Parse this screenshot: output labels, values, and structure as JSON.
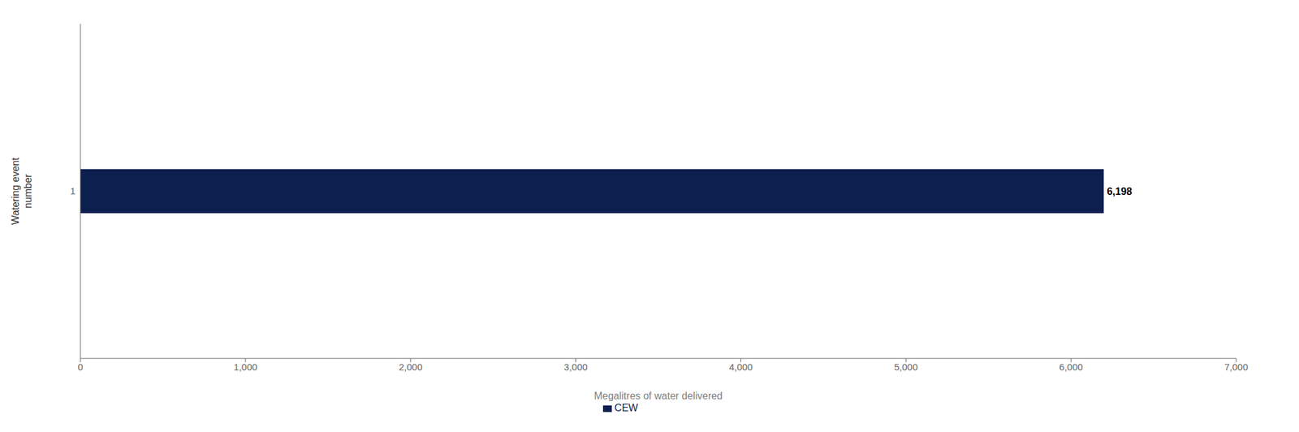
{
  "chart_data": {
    "type": "bar",
    "orientation": "horizontal",
    "categories": [
      "1"
    ],
    "series": [
      {
        "name": "CEW",
        "color": "#0d1f4e",
        "values": [
          6198
        ],
        "value_labels": [
          "6,198"
        ]
      }
    ],
    "data_labels": true,
    "xlabel": "Megalitres of water delivered",
    "ylabel": "Watering event\nnumber",
    "xlim": [
      0,
      7000
    ],
    "xticks": [
      0,
      {
        "value": 1000,
        "label": "1,000"
      },
      {
        "value": 2000,
        "label": "2,000"
      },
      {
        "value": 3000,
        "label": "3,000"
      },
      {
        "value": 4000,
        "label": "4,000"
      },
      {
        "value": 5000,
        "label": "5,000"
      },
      {
        "value": 6000,
        "label": "6,000"
      },
      {
        "value": 7000,
        "label": "7,000"
      }
    ],
    "grid": false,
    "legend": "bottom"
  }
}
